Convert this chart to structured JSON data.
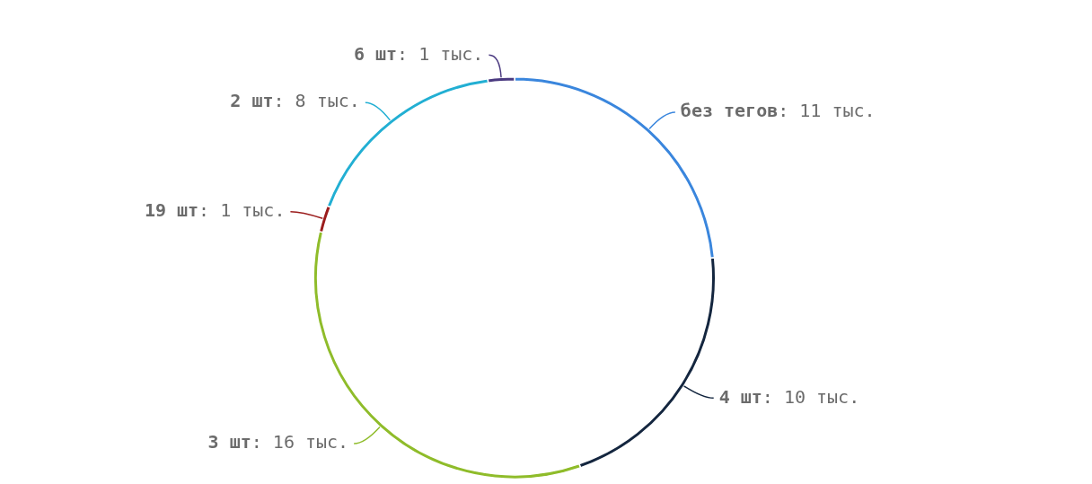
{
  "chart_data": {
    "type": "donut",
    "categories": [
      "без тегов",
      "4 шт",
      "3 шт",
      "19 шт",
      "2 шт",
      "6 шт"
    ],
    "values": [
      11,
      10,
      16,
      1,
      8,
      1
    ],
    "value_labels": [
      ": 11 тыс.",
      ": 10 тыс.",
      ": 16 тыс.",
      ": 1 тыс.",
      ": 8 тыс.",
      ": 1 тыс."
    ],
    "colors": [
      "#3a86dd",
      "#14263f",
      "#8fbc2a",
      "#9b1c1c",
      "#22afd3",
      "#4b3a80"
    ],
    "legend": false
  }
}
